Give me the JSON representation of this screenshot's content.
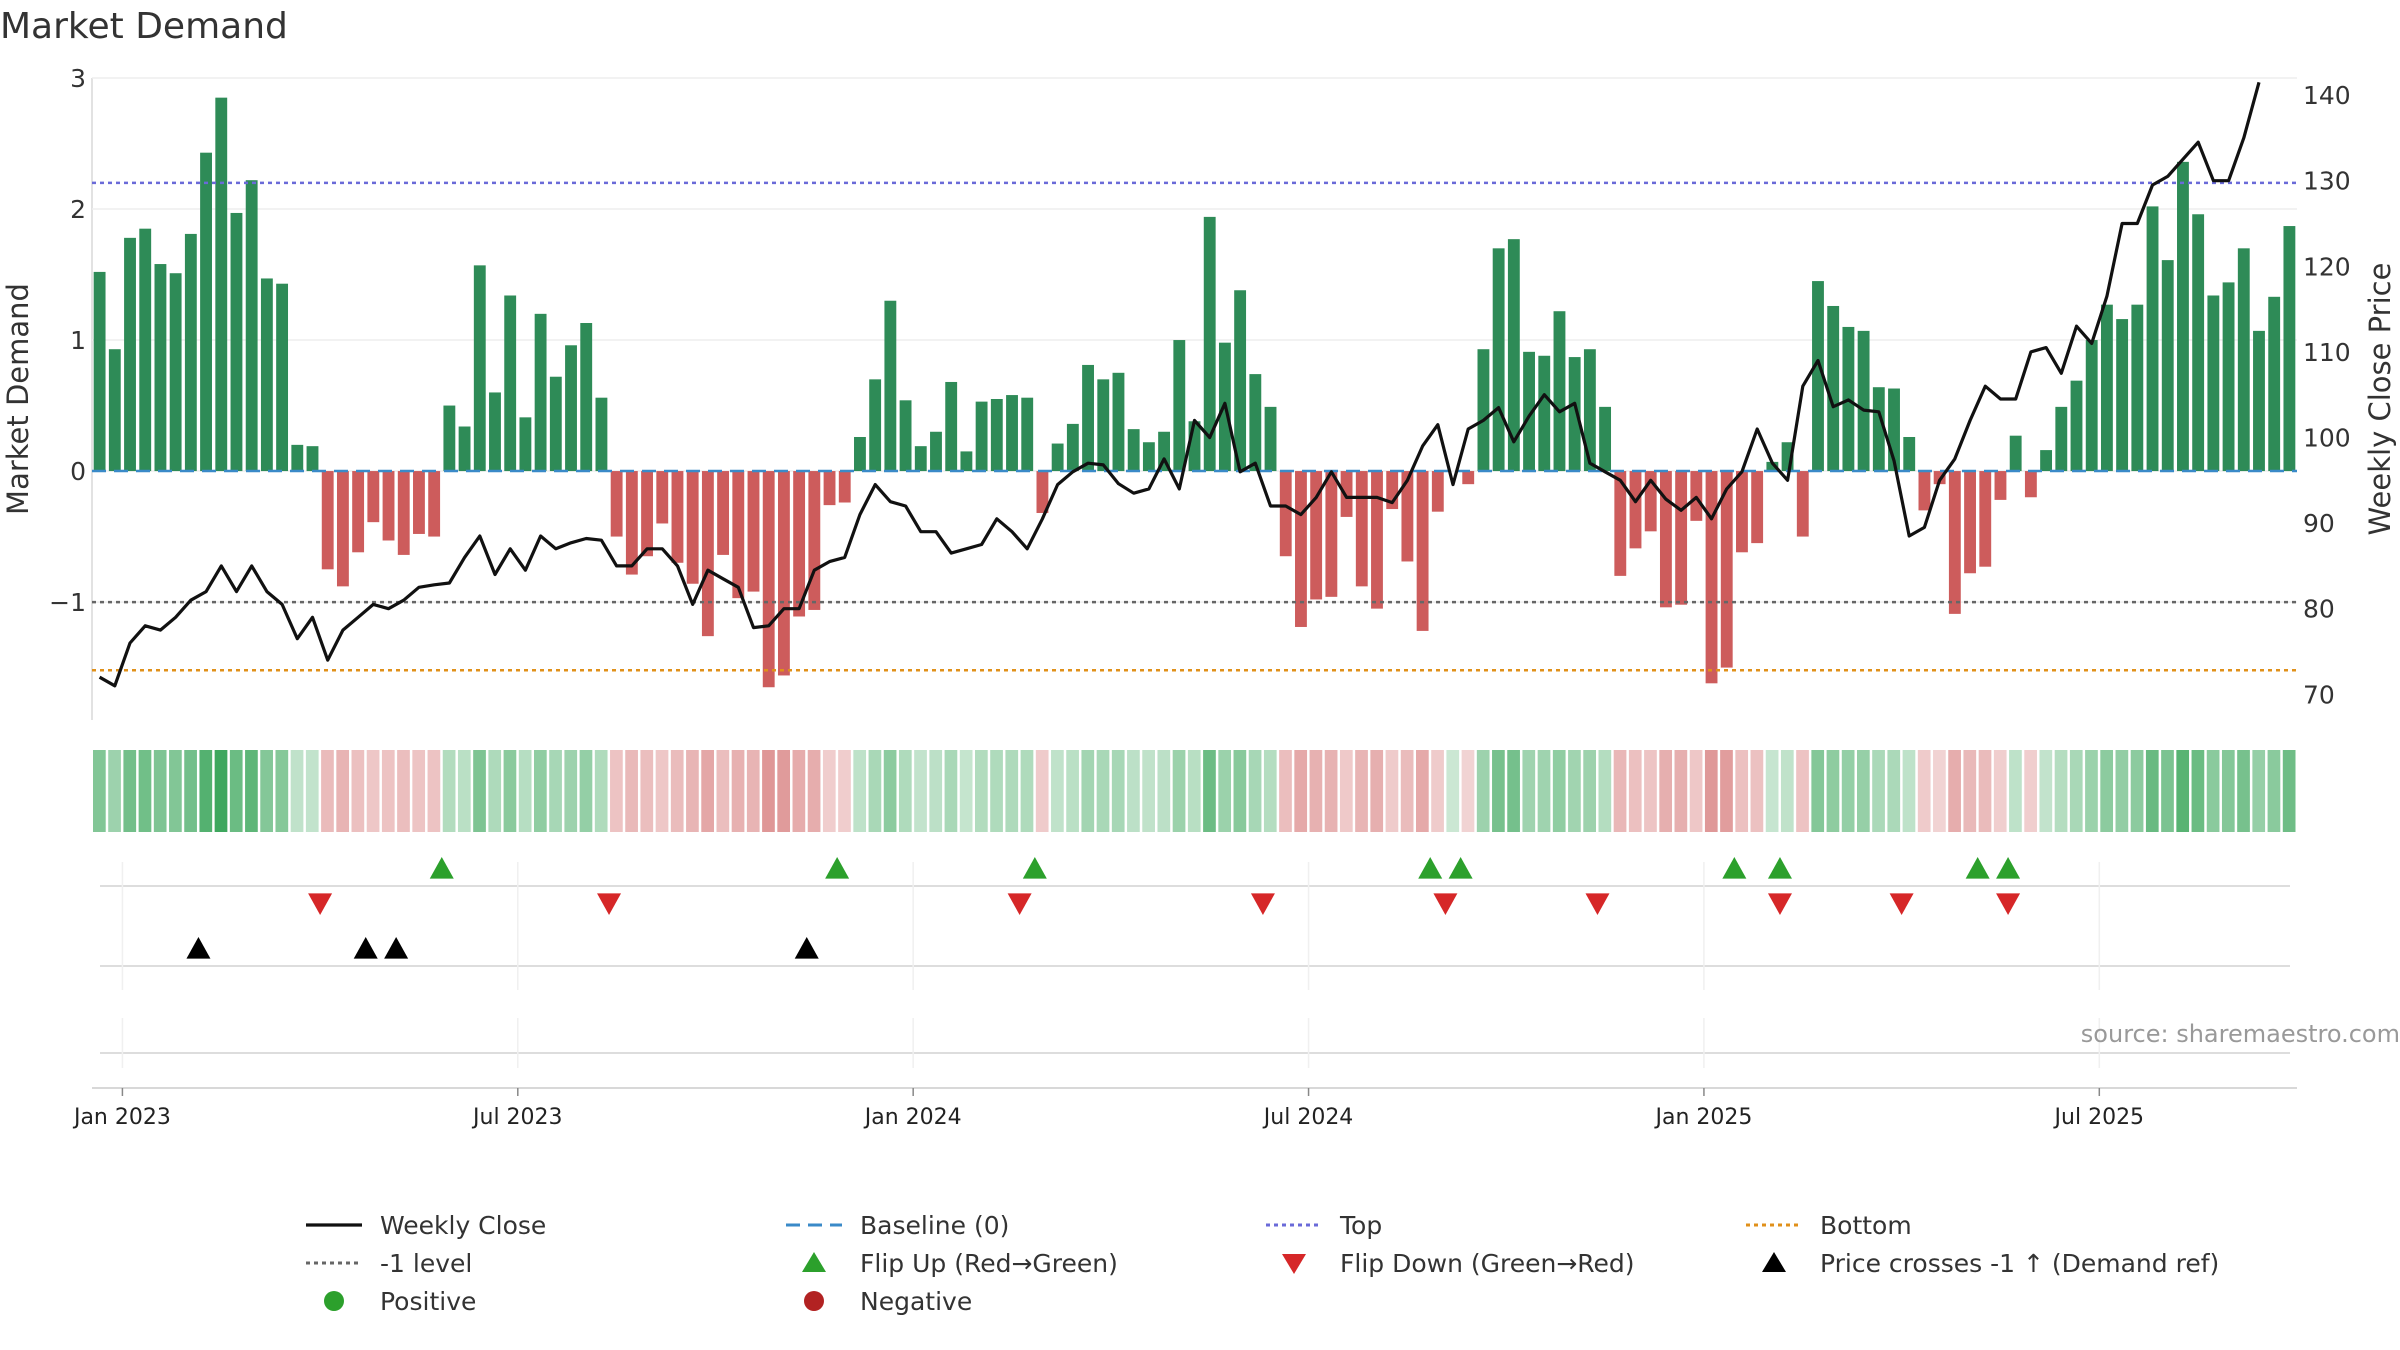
{
  "chart_data": {
    "type": "bar",
    "title": "Market Demand",
    "ylabel": "Market Demand",
    "y2label": "Weekly Close Price",
    "ylim": [
      -1.9,
      3.0
    ],
    "y2lim": [
      67,
      142
    ],
    "yticks": [
      "3",
      "2",
      "1",
      "0",
      "−1"
    ],
    "ytick_values": [
      3,
      2,
      1,
      0,
      -1
    ],
    "y2ticks": [
      "140",
      "130",
      "120",
      "110",
      "100",
      "90",
      "80",
      "70"
    ],
    "y2tick_values": [
      140,
      130,
      120,
      110,
      100,
      90,
      80,
      70
    ],
    "xticks": [
      "Jan 2023",
      "Jul 2023",
      "Jan 2024",
      "Jul 2024",
      "Jan 2025",
      "Jul 2025"
    ],
    "xtick_weeks": [
      2,
      28,
      54,
      80,
      106,
      132
    ],
    "reference_lines": {
      "top": 2.2,
      "bottom": -1.52,
      "minus_one": -1.0,
      "baseline": 0
    },
    "colors": {
      "positive_bar": "#2e8b57",
      "negative_bar": "#cd5c5c",
      "price": "#111111",
      "top": "#6a6ad8",
      "bottom": "#e0901a",
      "minus_one": "#666666",
      "baseline": "#3a8ac8",
      "flip_up": "#2ca02c",
      "flip_down": "#d62728",
      "cross": "#000000",
      "positive_dot": "#2ca02c",
      "negative_dot": "#b22222"
    },
    "series": [
      {
        "name": "Market Demand",
        "values": [
          1.52,
          0.93,
          1.78,
          1.85,
          1.58,
          1.51,
          1.81,
          2.43,
          2.85,
          1.97,
          2.22,
          1.47,
          1.43,
          0.2,
          0.19,
          -0.75,
          -0.88,
          -0.62,
          -0.39,
          -0.53,
          -0.64,
          -0.48,
          -0.5,
          0.5,
          0.34,
          1.57,
          0.6,
          1.34,
          0.41,
          1.2,
          0.72,
          0.96,
          1.13,
          0.56,
          -0.5,
          -0.79,
          -0.65,
          -0.4,
          -0.7,
          -0.86,
          -1.26,
          -0.64,
          -0.97,
          -0.92,
          -1.65,
          -1.56,
          -1.11,
          -1.06,
          -0.26,
          -0.24,
          0.26,
          0.7,
          1.3,
          0.54,
          0.19,
          0.3,
          0.68,
          0.15,
          0.53,
          0.55,
          0.58,
          0.56,
          -0.32,
          0.21,
          0.36,
          0.81,
          0.7,
          0.75,
          0.32,
          0.22,
          0.3,
          1.0,
          0.38,
          1.94,
          0.98,
          1.38,
          0.74,
          0.49,
          -0.65,
          -1.19,
          -0.98,
          -0.96,
          -0.35,
          -0.88,
          -1.05,
          -0.29,
          -0.69,
          -1.22,
          -0.31,
          0.0,
          -0.1,
          0.93,
          1.7,
          1.77,
          0.91,
          0.88,
          1.22,
          0.87,
          0.93,
          0.49,
          -0.8,
          -0.59,
          -0.46,
          -1.04,
          -1.02,
          -0.38,
          -1.62,
          -1.5,
          -0.62,
          -0.55,
          0.07,
          0.22,
          -0.5,
          1.45,
          1.26,
          1.1,
          1.07,
          0.64,
          0.63,
          0.26,
          -0.3,
          -0.1,
          -1.09,
          -0.78,
          -0.73,
          -0.22,
          0.27,
          -0.2,
          0.16,
          0.49,
          0.69,
          1.0,
          1.27,
          1.16,
          1.27,
          2.02,
          1.61,
          2.36,
          1.96,
          1.34,
          1.44,
          1.7,
          1.07,
          1.33,
          1.87
        ]
      },
      {
        "name": "Weekly Close",
        "values": [
          72,
          71,
          76,
          78,
          77.5,
          79,
          81,
          82,
          85,
          82,
          85,
          82,
          80.5,
          76.5,
          79,
          74,
          77.5,
          79,
          80.5,
          80,
          81,
          82.5,
          82.8,
          83,
          86,
          88.5,
          84,
          87,
          84.5,
          88.5,
          87,
          87.7,
          88.2,
          88,
          85,
          85,
          87,
          87,
          85,
          80.5,
          84.5,
          83.5,
          82.5,
          77.8,
          78,
          80,
          80,
          84.5,
          85.5,
          86,
          91,
          94.5,
          92.5,
          92,
          89,
          89,
          86.5,
          87,
          87.5,
          90.5,
          89,
          87,
          90.5,
          94.5,
          96,
          97,
          96.8,
          94.6,
          93.5,
          94,
          97.5,
          94,
          102,
          100,
          104,
          96,
          97,
          92,
          92,
          91,
          93,
          96,
          93,
          93,
          93,
          92.4,
          95,
          99,
          101.5,
          94.5,
          101,
          102,
          103.5,
          99.5,
          102.5,
          105,
          103,
          104,
          97,
          96,
          95,
          92.5,
          95,
          92.8,
          91.5,
          93,
          90.5,
          94,
          96,
          101,
          97,
          95,
          106,
          109,
          103.6,
          104.4,
          103.2,
          103,
          97.3,
          88.5,
          89.5,
          95,
          97.5,
          102,
          106,
          104.5,
          104.5,
          110,
          110.5,
          107.5,
          113,
          111,
          116.5,
          125,
          125,
          129.5,
          130.5,
          132.5,
          134.5,
          130,
          130,
          135,
          141.5
        ]
      }
    ],
    "heat_strip": "weekly demand shading (green positive, red negative)",
    "events": {
      "flip_up_weeks": [
        23,
        49,
        62,
        88,
        90,
        108,
        111,
        124,
        126
      ],
      "flip_down_weeks": [
        15,
        34,
        61,
        77,
        89,
        99,
        111,
        119,
        126
      ],
      "price_cross_weeks": [
        7,
        18,
        20,
        47
      ]
    },
    "legend": [
      {
        "key": "line-black",
        "label": "Weekly Close"
      },
      {
        "key": "dash-blue",
        "label": "Baseline (0)"
      },
      {
        "key": "dot-purple",
        "label": "Top"
      },
      {
        "key": "dot-orange",
        "label": "Bottom"
      },
      {
        "key": "dot-gray",
        "label": "-1 level"
      },
      {
        "key": "tri-up-green",
        "label": "Flip Up (Red→Green)"
      },
      {
        "key": "tri-down-red",
        "label": "Flip Down (Green→Red)"
      },
      {
        "key": "tri-up-black",
        "label": "Price crosses -1 ↑ (Demand ref)"
      },
      {
        "key": "circle-green",
        "label": "Positive"
      },
      {
        "key": "circle-red",
        "label": "Negative"
      }
    ]
  },
  "source": "source: sharemaestro.com"
}
